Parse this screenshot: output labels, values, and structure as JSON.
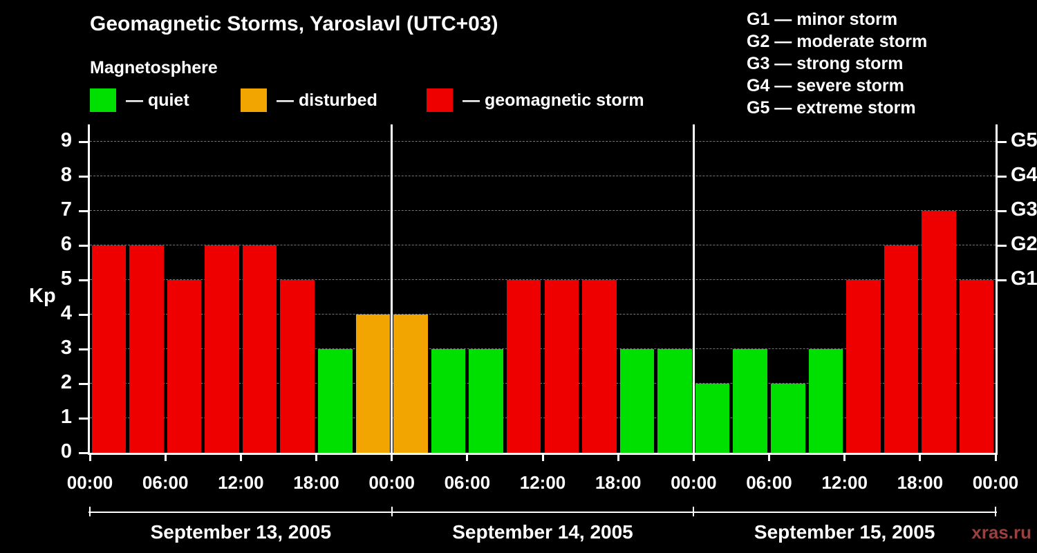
{
  "header": {
    "title": "Geomagnetic Storms, Yaroslavl (UTC+03)",
    "subtitle": "Magnetosphere"
  },
  "legend": {
    "items": [
      {
        "status": "quiet",
        "label": "— quiet"
      },
      {
        "status": "disturbed",
        "label": "— disturbed"
      },
      {
        "status": "storm",
        "label": "— geomagnetic storm"
      }
    ]
  },
  "storm_scale_legend": {
    "lines": [
      "G1 — minor storm",
      "G2 — moderate storm",
      "G3 — strong storm",
      "G4 — severe storm",
      "G5 — extreme storm"
    ]
  },
  "watermark": "xras.ru",
  "chart_data": {
    "type": "bar",
    "title": "Geomagnetic Storms, Yaroslavl (UTC+03)",
    "subtitle": "Magnetosphere",
    "ylabel": "Kp",
    "ylim": [
      0,
      9
    ],
    "y_ticks": [
      0,
      1,
      2,
      3,
      4,
      5,
      6,
      7,
      8,
      9
    ],
    "right_axis": [
      {
        "label": "G1",
        "value": 5
      },
      {
        "label": "G2",
        "value": 6
      },
      {
        "label": "G3",
        "value": 7
      },
      {
        "label": "G4",
        "value": 8
      },
      {
        "label": "G5",
        "value": 9
      }
    ],
    "interval_hours": 3,
    "x_tick_labels": [
      "00:00",
      "06:00",
      "12:00",
      "18:00",
      "00:00",
      "06:00",
      "12:00",
      "18:00",
      "00:00",
      "06:00",
      "12:00",
      "18:00",
      "00:00"
    ],
    "colors": {
      "quiet": "#00e000",
      "disturbed": "#f2a400",
      "storm": "#ee0000"
    },
    "grid": "horizontal-dashed",
    "legend_position": "top-left",
    "days": [
      {
        "date": "September 13, 2005",
        "kp": [
          6,
          6,
          5,
          6,
          6,
          5,
          3,
          4
        ],
        "status": [
          "storm",
          "storm",
          "storm",
          "storm",
          "storm",
          "storm",
          "quiet",
          "disturbed"
        ]
      },
      {
        "date": "September 14, 2005",
        "kp": [
          4,
          3,
          3,
          5,
          5,
          5,
          3,
          3
        ],
        "status": [
          "disturbed",
          "quiet",
          "quiet",
          "storm",
          "storm",
          "storm",
          "quiet",
          "quiet"
        ]
      },
      {
        "date": "September 15, 2005",
        "kp": [
          2,
          3,
          2,
          3,
          5,
          6,
          7,
          5
        ],
        "status": [
          "quiet",
          "quiet",
          "quiet",
          "quiet",
          "storm",
          "storm",
          "storm",
          "storm"
        ]
      }
    ]
  }
}
